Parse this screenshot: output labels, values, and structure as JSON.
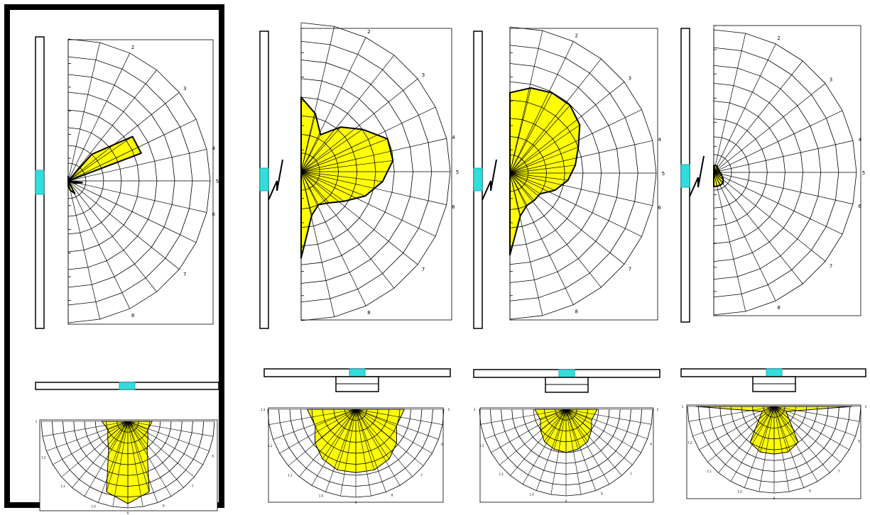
{
  "colors": {
    "lobe_fill": "#ffff00",
    "lobe_stroke": "#000000",
    "grid_stroke": "#000000",
    "lamp": "#33dddd",
    "selected_frame": "#000000"
  },
  "panels": [
    {
      "id": "panel-1",
      "selected": true,
      "side": {
        "angle_labels": [
          "2",
          "3",
          "4",
          "5",
          "6",
          "7",
          "8"
        ],
        "lobe": [
          0.03,
          0.0,
          0.0,
          0.25,
          0.55,
          0.55,
          0.0,
          0.1,
          0.05,
          0.0,
          0.0,
          0.1,
          0.07,
          0.04
        ]
      },
      "bottom": {
        "angle_labels": [
          "1",
          "1.2",
          "1.1",
          "1.0",
          "9",
          "8",
          "7",
          "6",
          "5"
        ],
        "lobe": [
          0.25,
          0.3,
          0.4,
          0.85,
          0.95,
          0.85,
          0.4,
          0.3,
          0.25,
          0.3,
          0.28
        ]
      }
    },
    {
      "id": "panel-2",
      "selected": false,
      "side": {
        "angle_labels": [
          "2",
          "3",
          "4",
          "5",
          "6",
          "7",
          "8"
        ],
        "lobe": [
          0.5,
          0.4,
          0.28,
          0.4,
          0.5,
          0.62,
          0.62,
          0.55,
          0.46,
          0.35,
          0.28,
          0.25,
          0.3,
          0.58
        ]
      },
      "bottom": {
        "angle_labels": [
          "1.3",
          "1.2",
          "1.1",
          "1.0",
          "9",
          "8",
          "7",
          "6",
          "5"
        ],
        "lobe": [
          0.5,
          0.6,
          0.68,
          0.72,
          0.72,
          0.72,
          0.68,
          0.6,
          0.5,
          0.55,
          0.55
        ]
      }
    },
    {
      "id": "panel-3",
      "selected": false,
      "side": {
        "angle_labels": [
          "2",
          "3",
          "4",
          "5",
          "6",
          "7",
          "8"
        ],
        "lobe": [
          0.55,
          0.6,
          0.62,
          0.62,
          0.58,
          0.5,
          0.45,
          0.4,
          0.33,
          0.25,
          0.25,
          0.25,
          0.3,
          0.56
        ]
      },
      "bottom": {
        "angle_labels": [
          "3",
          "1.2",
          "1.1",
          "1.0",
          "9",
          "8",
          "7",
          "6",
          "5"
        ],
        "lobe": [
          0.32,
          0.38,
          0.45,
          0.48,
          0.5,
          0.48,
          0.45,
          0.38,
          0.32,
          0.36,
          0.36
        ]
      }
    },
    {
      "id": "panel-4",
      "selected": false,
      "side": {
        "angle_labels": [
          "2",
          "3",
          "4",
          "5",
          "6",
          "7",
          "8"
        ],
        "lobe": [
          0.05,
          0.05,
          0.05,
          0.04,
          0.04,
          0.04,
          0.04,
          0.05,
          0.06,
          0.08,
          0.1,
          0.1,
          0.1,
          0.1
        ]
      },
      "bottom": {
        "angle_labels": [
          "1",
          "1.2",
          "1.1",
          "1.0",
          "9",
          "8",
          "7",
          "6",
          "5"
        ],
        "lobe": [
          0.15,
          0.22,
          0.5,
          0.55,
          0.55,
          0.55,
          0.5,
          0.22,
          0.15,
          0.9,
          0.9
        ]
      }
    }
  ]
}
